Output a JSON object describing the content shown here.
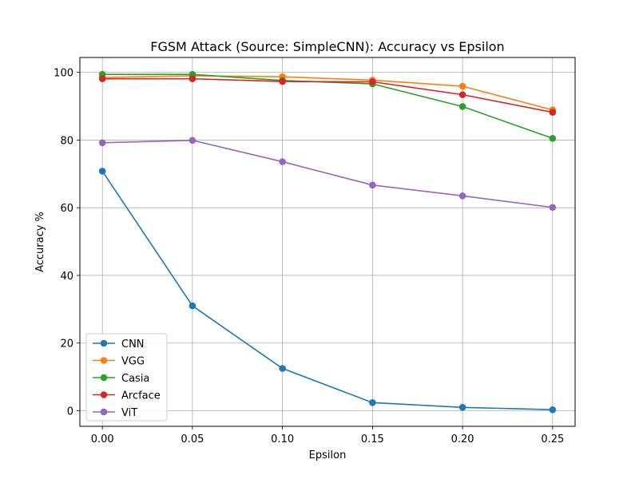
{
  "chart_data": {
    "type": "line",
    "title": "FGSM Attack (Source: SimpleCNN): Accuracy vs Epsilon",
    "xlabel": "Epsilon",
    "ylabel": "Accuracy %",
    "x": [
      0.0,
      0.05,
      0.1,
      0.15,
      0.2,
      0.25
    ],
    "x_tick_labels": [
      "0.00",
      "0.05",
      "0.10",
      "0.15",
      "0.20",
      "0.25"
    ],
    "y_ticks": [
      0,
      20,
      40,
      60,
      80,
      100
    ],
    "y_tick_labels": [
      "0",
      "20",
      "40",
      "60",
      "80",
      "100"
    ],
    "xlim": [
      -0.0125,
      0.2625
    ],
    "ylim": [
      -4.6,
      104.4
    ],
    "grid": true,
    "legend_position": "lower-left",
    "series": [
      {
        "name": "CNN",
        "color": "#1f77b4",
        "values": [
          70.8,
          31.0,
          12.5,
          2.4,
          1.0,
          0.3
        ]
      },
      {
        "name": "VGG",
        "color": "#ff7f0e",
        "values": [
          98.5,
          99.0,
          98.7,
          97.7,
          95.9,
          88.9
        ]
      },
      {
        "name": "Casia",
        "color": "#2ca02c",
        "values": [
          99.4,
          99.4,
          97.6,
          96.6,
          89.9,
          80.5
        ]
      },
      {
        "name": "Arcface",
        "color": "#d62728",
        "values": [
          98.1,
          98.1,
          97.3,
          97.2,
          93.4,
          88.2
        ]
      },
      {
        "name": "ViT",
        "color": "#9467bd",
        "values": [
          79.2,
          79.9,
          73.6,
          66.7,
          63.5,
          60.1
        ]
      }
    ]
  }
}
